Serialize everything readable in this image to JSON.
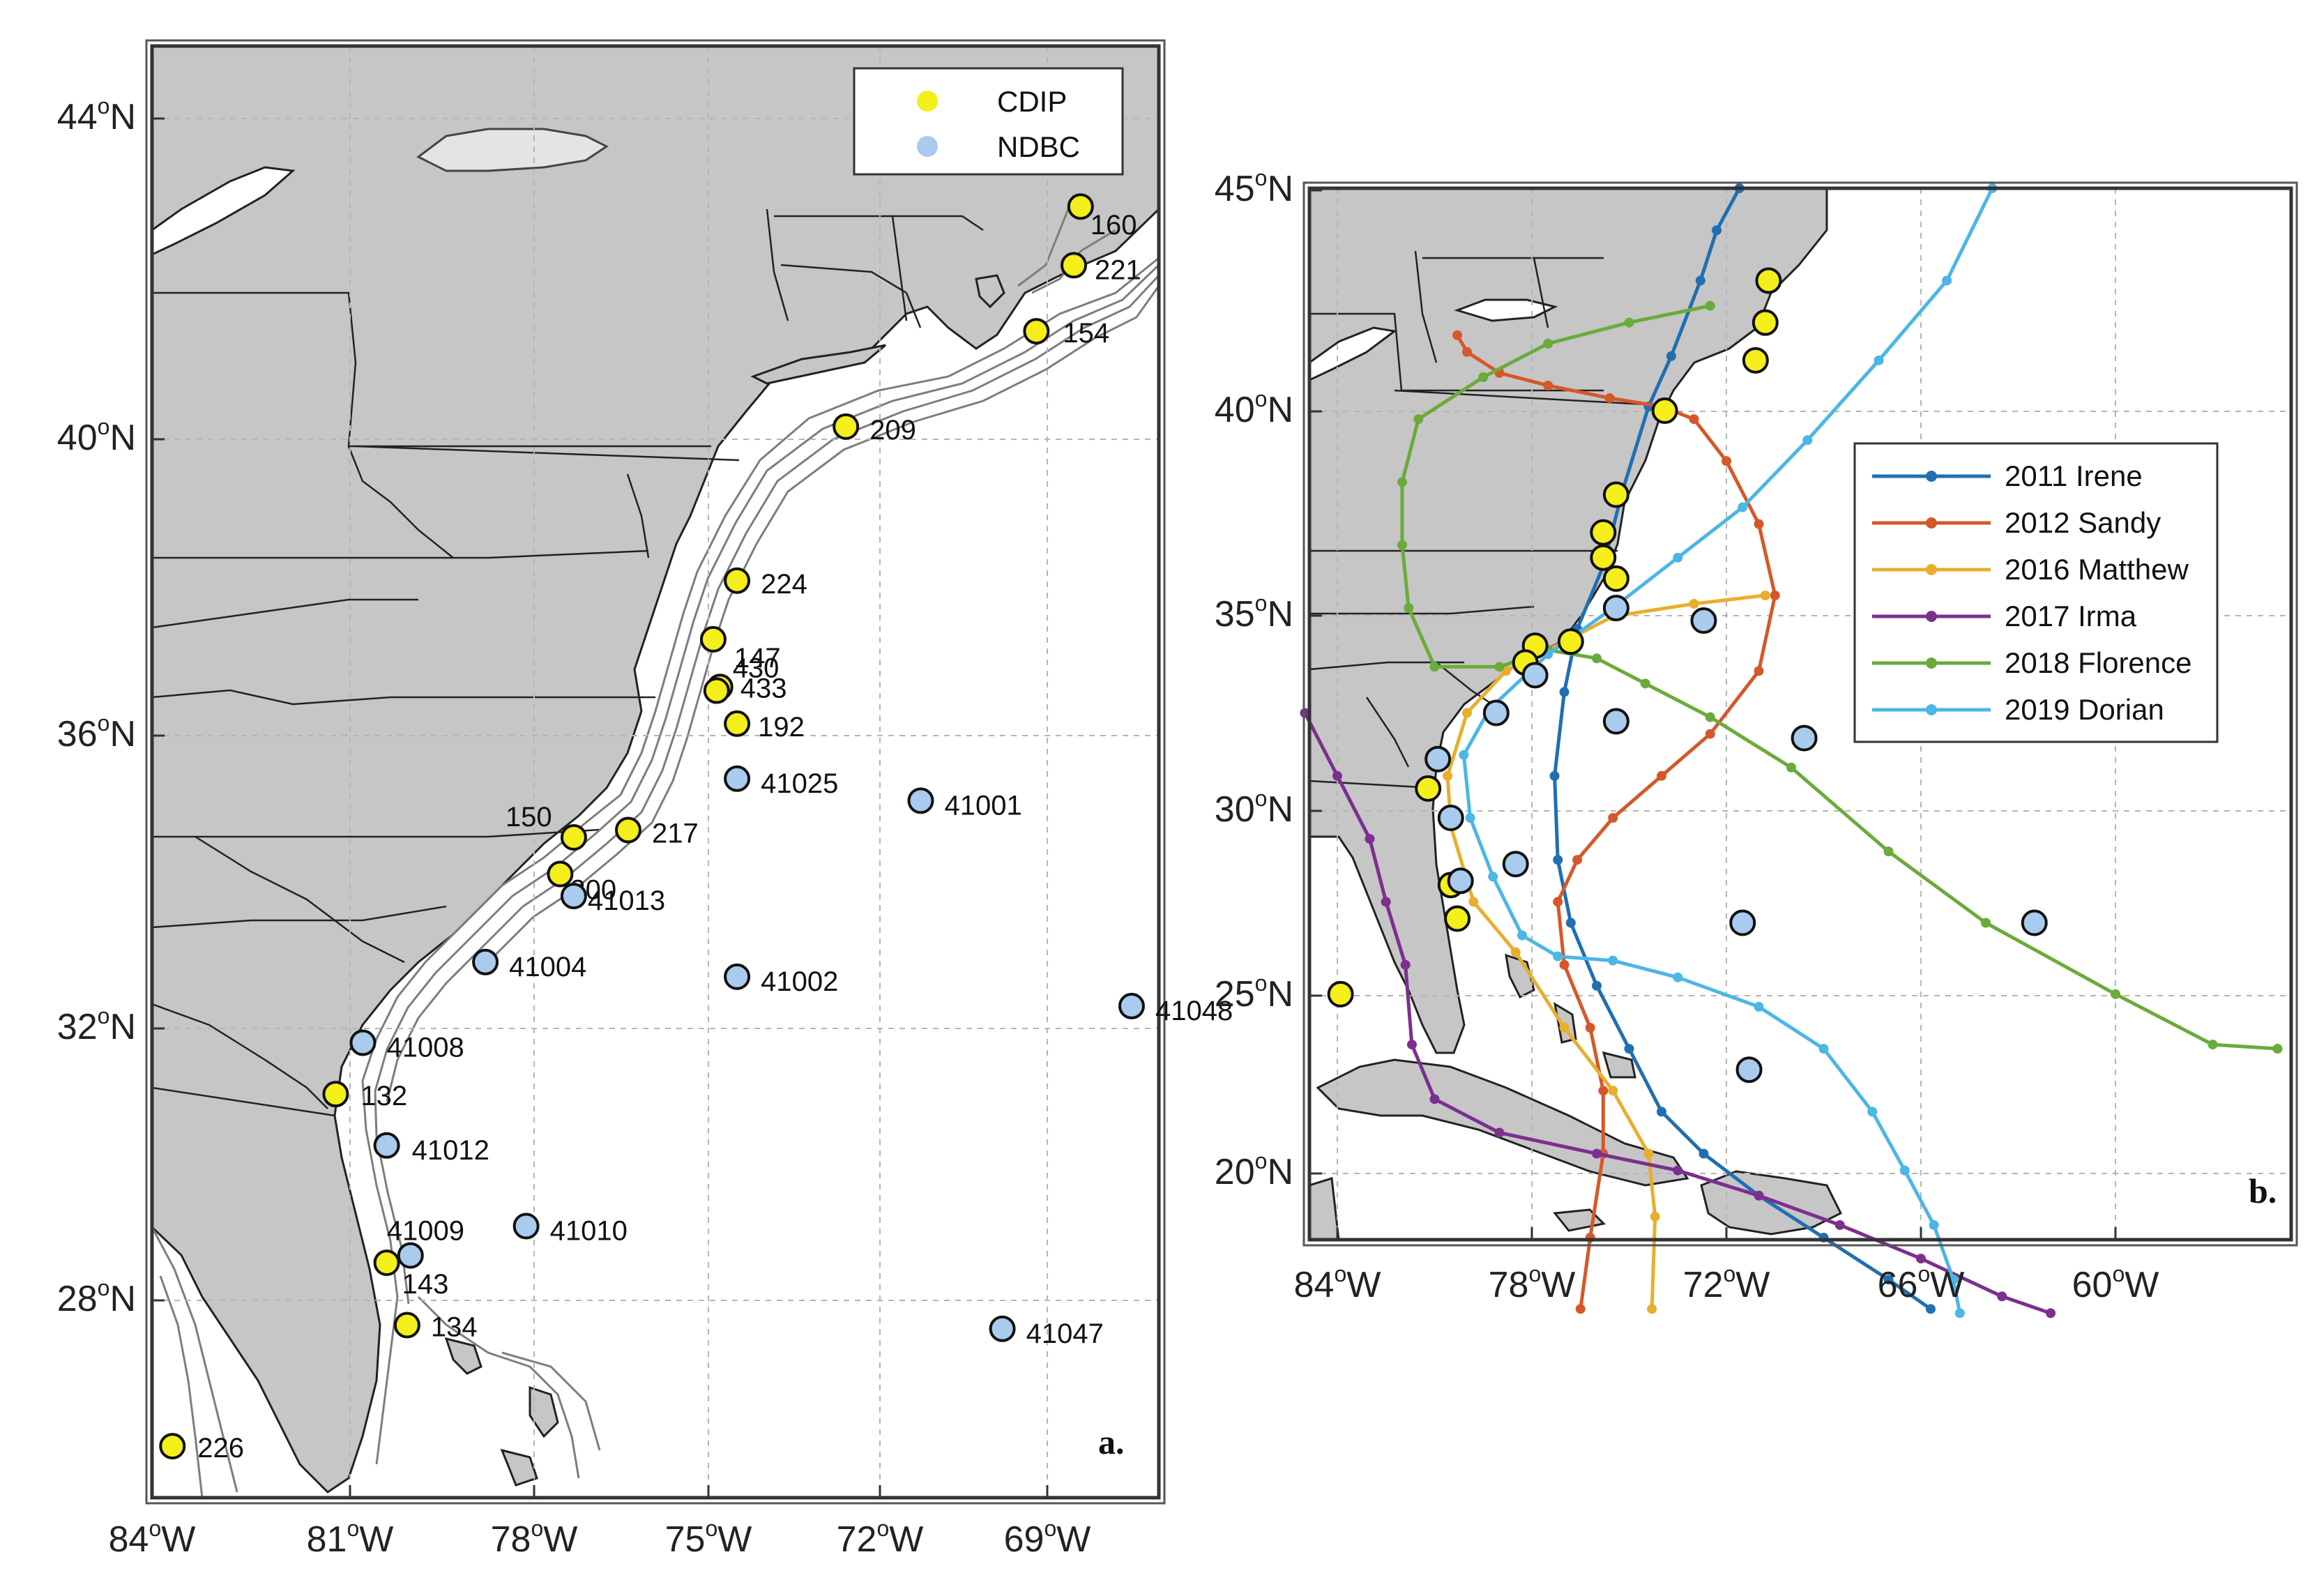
{
  "colors": {
    "land": "#c6c6c6",
    "ocean": "#ffffff",
    "cdip": "#f4ee1a",
    "ndbc": "#a9cbee",
    "irene": "#1f6fb3",
    "sandy": "#d5582a",
    "matthew": "#e8ae2e",
    "irma": "#7c2f8f",
    "florence": "#6aab3a",
    "dorian": "#4cb6e4"
  },
  "panel_a": {
    "letter": "a.",
    "legend": [
      {
        "label": "CDIP",
        "color": "#f4ee1a"
      },
      {
        "label": "NDBC",
        "color": "#a9cbee"
      }
    ],
    "x_ticks": [
      {
        "deg": "84",
        "sup": "o",
        "hem": "W"
      },
      {
        "deg": "81",
        "sup": "o",
        "hem": "W"
      },
      {
        "deg": "78",
        "sup": "o",
        "hem": "W"
      },
      {
        "deg": "75",
        "sup": "o",
        "hem": "W"
      },
      {
        "deg": "72",
        "sup": "o",
        "hem": "W"
      },
      {
        "deg": "69",
        "sup": "o",
        "hem": "W"
      }
    ],
    "y_ticks": [
      {
        "deg": "44",
        "sup": "o",
        "hem": "N"
      },
      {
        "deg": "40",
        "sup": "o",
        "hem": "N"
      },
      {
        "deg": "36",
        "sup": "o",
        "hem": "N"
      },
      {
        "deg": "32",
        "sup": "o",
        "hem": "N"
      },
      {
        "deg": "28",
        "sup": "o",
        "hem": "N"
      }
    ],
    "stations": [
      {
        "id": "160",
        "type": "CDIP",
        "lon": -70.35,
        "lat": 42.8
      },
      {
        "id": "221",
        "type": "CDIP",
        "lon": -70.45,
        "lat": 42.0
      },
      {
        "id": "154",
        "type": "CDIP",
        "lon": -71.0,
        "lat": 41.1
      },
      {
        "id": "209",
        "type": "CDIP",
        "lon": -73.8,
        "lat": 39.8
      },
      {
        "id": "224",
        "type": "CDIP",
        "lon": -75.4,
        "lat": 37.7
      },
      {
        "id": "147",
        "type": "CDIP",
        "lon": -75.75,
        "lat": 36.9
      },
      {
        "id": "430",
        "type": "CDIP",
        "lon": -75.65,
        "lat": 36.25
      },
      {
        "id": "433",
        "type": "CDIP",
        "lon": -75.7,
        "lat": 36.2
      },
      {
        "id": "192",
        "type": "CDIP",
        "lon": -75.4,
        "lat": 35.75
      },
      {
        "id": "150",
        "type": "CDIP",
        "lon": -77.8,
        "lat": 34.2
      },
      {
        "id": "217",
        "type": "CDIP",
        "lon": -77.0,
        "lat": 34.3
      },
      {
        "id": "200",
        "type": "CDIP",
        "lon": -78.0,
        "lat": 33.7
      },
      {
        "id": "132",
        "type": "CDIP",
        "lon": -81.3,
        "lat": 30.7
      },
      {
        "id": "143",
        "type": "CDIP",
        "lon": -80.55,
        "lat": 28.4
      },
      {
        "id": "134",
        "type": "CDIP",
        "lon": -80.25,
        "lat": 27.55
      },
      {
        "id": "226",
        "type": "CDIP",
        "lon": -83.7,
        "lat": 25.9
      },
      {
        "id": "41025",
        "type": "NDBC",
        "lon": -75.4,
        "lat": 35.0
      },
      {
        "id": "41001",
        "type": "NDBC",
        "lon": -72.7,
        "lat": 34.7
      },
      {
        "id": "41013",
        "type": "NDBC",
        "lon": -77.8,
        "lat": 33.4
      },
      {
        "id": "41004",
        "type": "NDBC",
        "lon": -79.1,
        "lat": 32.5
      },
      {
        "id": "41002",
        "type": "NDBC",
        "lon": -75.4,
        "lat": 32.3
      },
      {
        "id": "41048",
        "type": "NDBC",
        "lon": -69.6,
        "lat": 31.9
      },
      {
        "id": "41008",
        "type": "NDBC",
        "lon": -80.9,
        "lat": 31.4
      },
      {
        "id": "41012",
        "type": "NDBC",
        "lon": -80.55,
        "lat": 30.0
      },
      {
        "id": "41009",
        "type": "NDBC",
        "lon": -80.2,
        "lat": 28.5
      },
      {
        "id": "41010",
        "type": "NDBC",
        "lon": -78.5,
        "lat": 28.9
      },
      {
        "id": "41047",
        "type": "NDBC",
        "lon": -71.5,
        "lat": 27.5
      }
    ]
  },
  "panel_b": {
    "letter": "b.",
    "x_ticks": [
      {
        "deg": "84",
        "sup": "o",
        "hem": "W"
      },
      {
        "deg": "78",
        "sup": "o",
        "hem": "W"
      },
      {
        "deg": "72",
        "sup": "o",
        "hem": "W"
      },
      {
        "deg": "66",
        "sup": "o",
        "hem": "W"
      },
      {
        "deg": "60",
        "sup": "o",
        "hem": "W"
      }
    ],
    "y_ticks": [
      {
        "deg": "45",
        "sup": "o",
        "hem": "N"
      },
      {
        "deg": "40",
        "sup": "o",
        "hem": "N"
      },
      {
        "deg": "35",
        "sup": "o",
        "hem": "N"
      },
      {
        "deg": "30",
        "sup": "o",
        "hem": "N"
      },
      {
        "deg": "25",
        "sup": "o",
        "hem": "N"
      },
      {
        "deg": "20",
        "sup": "o",
        "hem": "N"
      }
    ],
    "legend": [
      {
        "label": "2011 Irene",
        "color": "#1f6fb3"
      },
      {
        "label": "2012 Sandy",
        "color": "#d5582a"
      },
      {
        "label": "2016 Matthew",
        "color": "#e8ae2e"
      },
      {
        "label": "2017 Irma",
        "color": "#7c2f8f"
      },
      {
        "label": "2018 Florence",
        "color": "#6aab3a"
      },
      {
        "label": "2019 Dorian",
        "color": "#4cb6e4"
      }
    ],
    "tracks": [
      {
        "name": "2011 Irene",
        "color": "#1f6fb3",
        "points": [
          [
            -65.7,
            18.3
          ],
          [
            -67.0,
            19.0
          ],
          [
            -69.0,
            20.0
          ],
          [
            -71.0,
            21.0
          ],
          [
            -72.7,
            22.0
          ],
          [
            -74.0,
            23.0
          ],
          [
            -75.0,
            24.5
          ],
          [
            -76.0,
            26.0
          ],
          [
            -76.8,
            27.5
          ],
          [
            -77.2,
            29.0
          ],
          [
            -77.3,
            31.0
          ],
          [
            -77.0,
            33.0
          ],
          [
            -76.6,
            34.5
          ],
          [
            -75.8,
            36.0
          ],
          [
            -75.2,
            37.8
          ],
          [
            -74.4,
            39.8
          ],
          [
            -73.7,
            41.0
          ],
          [
            -72.8,
            42.8
          ],
          [
            -72.3,
            44.0
          ],
          [
            -71.6,
            45.0
          ]
        ]
      },
      {
        "name": "2012 Sandy",
        "color": "#d5582a",
        "points": [
          [
            -76.5,
            18.3
          ],
          [
            -76.2,
            20.0
          ],
          [
            -75.8,
            22.0
          ],
          [
            -75.8,
            23.5
          ],
          [
            -76.2,
            25.0
          ],
          [
            -77.0,
            26.5
          ],
          [
            -77.2,
            28.0
          ],
          [
            -76.6,
            29.0
          ],
          [
            -75.5,
            30.0
          ],
          [
            -74.0,
            31.0
          ],
          [
            -72.5,
            32.0
          ],
          [
            -71.0,
            33.5
          ],
          [
            -70.5,
            35.3
          ],
          [
            -71.0,
            37.0
          ],
          [
            -72.0,
            38.5
          ],
          [
            -73.0,
            39.5
          ],
          [
            -74.0,
            39.8
          ],
          [
            -75.6,
            40.0
          ],
          [
            -77.5,
            40.3
          ],
          [
            -79.0,
            40.6
          ],
          [
            -80.0,
            41.1
          ],
          [
            -80.3,
            41.5
          ]
        ]
      },
      {
        "name": "2016 Matthew",
        "color": "#e8ae2e",
        "points": [
          [
            -74.3,
            18.3
          ],
          [
            -74.2,
            20.5
          ],
          [
            -74.4,
            22.0
          ],
          [
            -75.5,
            23.5
          ],
          [
            -77.0,
            25.0
          ],
          [
            -78.5,
            26.8
          ],
          [
            -79.8,
            28.0
          ],
          [
            -80.5,
            29.8
          ],
          [
            -80.6,
            31.0
          ],
          [
            -80.0,
            32.5
          ],
          [
            -78.8,
            33.5
          ],
          [
            -77.0,
            34.2
          ],
          [
            -75.5,
            34.8
          ],
          [
            -73.0,
            35.1
          ],
          [
            -70.8,
            35.3
          ]
        ]
      },
      {
        "name": "2017 Irma",
        "color": "#7c2f8f",
        "points": [
          [
            -62.0,
            18.2
          ],
          [
            -63.5,
            18.6
          ],
          [
            -66.0,
            19.5
          ],
          [
            -68.5,
            20.3
          ],
          [
            -71.0,
            21.0
          ],
          [
            -73.5,
            21.6
          ],
          [
            -76.0,
            22.0
          ],
          [
            -79.0,
            22.5
          ],
          [
            -81.0,
            23.3
          ],
          [
            -81.7,
            24.6
          ],
          [
            -81.9,
            26.5
          ],
          [
            -82.5,
            28.0
          ],
          [
            -83.0,
            29.5
          ],
          [
            -84.0,
            31.0
          ],
          [
            -85.0,
            32.5
          ]
        ]
      },
      {
        "name": "2018 Florence",
        "color": "#6aab3a",
        "points": [
          [
            -55.0,
            24.5
          ],
          [
            -57.0,
            24.6
          ],
          [
            -60.0,
            25.8
          ],
          [
            -64.0,
            27.5
          ],
          [
            -67.0,
            29.2
          ],
          [
            -70.0,
            31.2
          ],
          [
            -72.5,
            32.4
          ],
          [
            -74.5,
            33.2
          ],
          [
            -76.0,
            33.8
          ],
          [
            -77.5,
            34.0
          ],
          [
            -79.0,
            33.6
          ],
          [
            -81.0,
            33.6
          ],
          [
            -81.8,
            35.0
          ],
          [
            -82.0,
            36.5
          ],
          [
            -82.0,
            38.0
          ],
          [
            -81.5,
            39.5
          ],
          [
            -79.5,
            40.5
          ],
          [
            -77.5,
            41.3
          ],
          [
            -75.0,
            41.8
          ],
          [
            -72.5,
            42.2
          ]
        ]
      },
      {
        "name": "2019 Dorian",
        "color": "#4cb6e4",
        "points": [
          [
            -64.8,
            18.2
          ],
          [
            -65.0,
            19.0
          ],
          [
            -65.6,
            20.3
          ],
          [
            -66.5,
            21.6
          ],
          [
            -67.5,
            23.0
          ],
          [
            -69.0,
            24.5
          ],
          [
            -71.0,
            25.5
          ],
          [
            -73.5,
            26.2
          ],
          [
            -75.5,
            26.6
          ],
          [
            -77.2,
            26.7
          ],
          [
            -78.3,
            27.2
          ],
          [
            -79.2,
            28.6
          ],
          [
            -79.9,
            30.0
          ],
          [
            -80.1,
            31.5
          ],
          [
            -79.3,
            32.6
          ],
          [
            -77.5,
            33.9
          ],
          [
            -75.5,
            35.0
          ],
          [
            -73.5,
            36.2
          ],
          [
            -71.5,
            37.4
          ],
          [
            -69.5,
            39.0
          ],
          [
            -67.3,
            40.9
          ],
          [
            -65.2,
            42.8
          ],
          [
            -63.8,
            45.0
          ]
        ]
      }
    ],
    "stations": [
      {
        "type": "CDIP",
        "lon": -70.7,
        "lat": 42.8
      },
      {
        "type": "CDIP",
        "lon": -70.8,
        "lat": 41.8
      },
      {
        "type": "CDIP",
        "lon": -71.1,
        "lat": 40.9
      },
      {
        "type": "CDIP",
        "lon": -73.9,
        "lat": 39.7
      },
      {
        "type": "CDIP",
        "lon": -75.4,
        "lat": 37.7
      },
      {
        "type": "CDIP",
        "lon": -75.8,
        "lat": 36.8
      },
      {
        "type": "CDIP",
        "lon": -75.8,
        "lat": 36.2
      },
      {
        "type": "CDIP",
        "lon": -75.4,
        "lat": 35.7
      },
      {
        "type": "CDIP",
        "lon": -77.9,
        "lat": 34.1
      },
      {
        "type": "CDIP",
        "lon": -76.8,
        "lat": 34.2
      },
      {
        "type": "CDIP",
        "lon": -78.2,
        "lat": 33.7
      },
      {
        "type": "CDIP",
        "lon": -81.2,
        "lat": 30.7
      },
      {
        "type": "CDIP",
        "lon": -80.5,
        "lat": 28.4
      },
      {
        "type": "CDIP",
        "lon": -80.3,
        "lat": 27.6
      },
      {
        "type": "CDIP",
        "lon": -83.9,
        "lat": 25.8
      },
      {
        "type": "NDBC",
        "lon": -75.4,
        "lat": 35.0
      },
      {
        "type": "NDBC",
        "lon": -72.7,
        "lat": 34.7
      },
      {
        "type": "NDBC",
        "lon": -77.9,
        "lat": 33.4
      },
      {
        "type": "NDBC",
        "lon": -79.1,
        "lat": 32.5
      },
      {
        "type": "NDBC",
        "lon": -75.4,
        "lat": 32.3
      },
      {
        "type": "NDBC",
        "lon": -69.6,
        "lat": 31.9
      },
      {
        "type": "NDBC",
        "lon": -80.9,
        "lat": 31.4
      },
      {
        "type": "NDBC",
        "lon": -80.5,
        "lat": 30.0
      },
      {
        "type": "NDBC",
        "lon": -80.2,
        "lat": 28.5
      },
      {
        "type": "NDBC",
        "lon": -78.5,
        "lat": 28.9
      },
      {
        "type": "NDBC",
        "lon": -71.5,
        "lat": 27.5
      },
      {
        "type": "NDBC",
        "lon": -62.5,
        "lat": 27.5
      },
      {
        "type": "NDBC",
        "lon": -71.3,
        "lat": 24.0
      }
    ]
  }
}
